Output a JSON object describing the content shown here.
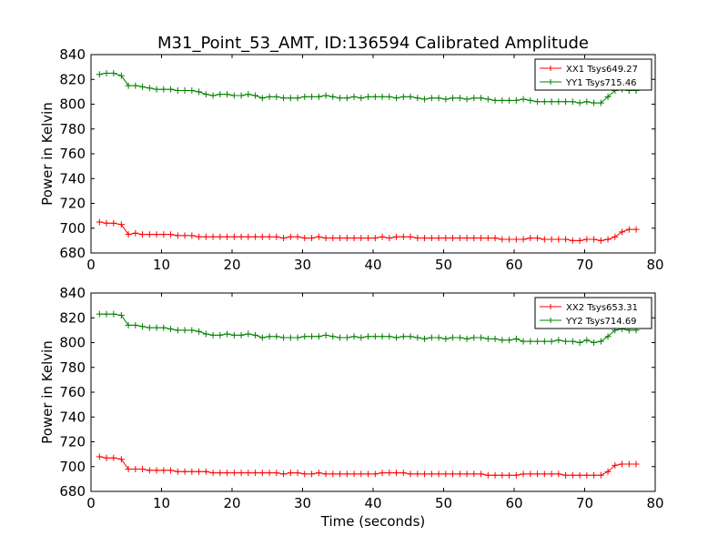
{
  "figure": {
    "title": "M31_Point_53_AMT, ID:136594 Calibrated Amplitude",
    "xlabel": "Time (seconds)"
  },
  "colors": {
    "red": "#ff0000",
    "green": "#008000"
  },
  "chart_data": [
    {
      "type": "line",
      "xlabel": "",
      "ylabel": "Power in Kelvin",
      "xlim": [
        0,
        80
      ],
      "ylim": [
        680,
        840
      ],
      "xticks": [
        "0",
        "10",
        "20",
        "30",
        "40",
        "50",
        "60",
        "70",
        "80"
      ],
      "yticks": [
        "680",
        "700",
        "720",
        "740",
        "760",
        "780",
        "800",
        "820",
        "840"
      ],
      "grid": false,
      "legend_placement": "top-right",
      "series": [
        {
          "name": "XX1 Tsys649.27",
          "color": "#ff0000",
          "x": [
            1.2,
            2.2,
            3.2,
            4.3,
            5.3,
            6.3,
            7.3,
            8.3,
            9.3,
            10.3,
            11.3,
            12.3,
            13.3,
            14.3,
            15.3,
            16.3,
            17.3,
            18.3,
            19.3,
            20.3,
            21.3,
            22.3,
            23.3,
            24.3,
            25.3,
            26.3,
            27.3,
            28.3,
            29.3,
            30.3,
            31.3,
            32.3,
            33.3,
            34.3,
            35.3,
            36.3,
            37.3,
            38.3,
            39.3,
            40.3,
            41.3,
            42.3,
            43.3,
            44.3,
            45.3,
            46.3,
            47.3,
            48.3,
            49.3,
            50.3,
            51.3,
            52.3,
            53.3,
            54.3,
            55.3,
            56.3,
            57.3,
            58.3,
            59.3,
            60.3,
            61.3,
            62.3,
            63.3,
            64.3,
            65.3,
            66.3,
            67.3,
            68.3,
            69.3,
            70.3,
            71.3,
            72.3,
            73.3,
            74.3,
            75.3,
            76.3,
            77.3
          ],
          "y": [
            705,
            704,
            704,
            703,
            695,
            696,
            695,
            695,
            695,
            695,
            695,
            694,
            694,
            694,
            693,
            693,
            693,
            693,
            693,
            693,
            693,
            693,
            693,
            693,
            693,
            693,
            692,
            693,
            693,
            692,
            692,
            693,
            692,
            692,
            692,
            692,
            692,
            692,
            692,
            692,
            693,
            692,
            693,
            693,
            693,
            692,
            692,
            692,
            692,
            692,
            692,
            692,
            692,
            692,
            692,
            692,
            692,
            691,
            691,
            691,
            691,
            692,
            692,
            691,
            691,
            691,
            691,
            690,
            690,
            691,
            691,
            690,
            691,
            693,
            697,
            699,
            699
          ]
        },
        {
          "name": "YY1 Tsys715.46",
          "color": "#008000",
          "x": [
            1.2,
            2.2,
            3.2,
            4.3,
            5.3,
            6.3,
            7.3,
            8.3,
            9.3,
            10.3,
            11.3,
            12.3,
            13.3,
            14.3,
            15.3,
            16.3,
            17.3,
            18.3,
            19.3,
            20.3,
            21.3,
            22.3,
            23.3,
            24.3,
            25.3,
            26.3,
            27.3,
            28.3,
            29.3,
            30.3,
            31.3,
            32.3,
            33.3,
            34.3,
            35.3,
            36.3,
            37.3,
            38.3,
            39.3,
            40.3,
            41.3,
            42.3,
            43.3,
            44.3,
            45.3,
            46.3,
            47.3,
            48.3,
            49.3,
            50.3,
            51.3,
            52.3,
            53.3,
            54.3,
            55.3,
            56.3,
            57.3,
            58.3,
            59.3,
            60.3,
            61.3,
            62.3,
            63.3,
            64.3,
            65.3,
            66.3,
            67.3,
            68.3,
            69.3,
            70.3,
            71.3,
            72.3,
            73.3,
            74.3,
            75.3,
            76.3,
            77.3
          ],
          "y": [
            824,
            825,
            825,
            823,
            815,
            815,
            814,
            813,
            812,
            812,
            812,
            811,
            811,
            811,
            810,
            808,
            807,
            808,
            808,
            807,
            807,
            808,
            807,
            805,
            806,
            806,
            805,
            805,
            805,
            806,
            806,
            806,
            807,
            806,
            805,
            805,
            806,
            805,
            806,
            806,
            806,
            806,
            805,
            806,
            806,
            805,
            804,
            805,
            805,
            804,
            805,
            805,
            804,
            805,
            805,
            804,
            803,
            803,
            803,
            803,
            804,
            803,
            802,
            802,
            802,
            802,
            802,
            802,
            801,
            802,
            801,
            801,
            806,
            811,
            812,
            811,
            811
          ]
        }
      ]
    },
    {
      "type": "line",
      "xlabel": "Time (seconds)",
      "ylabel": "Power in Kelvin",
      "xlim": [
        0,
        80
      ],
      "ylim": [
        680,
        840
      ],
      "xticks": [
        "0",
        "10",
        "20",
        "30",
        "40",
        "50",
        "60",
        "70",
        "80"
      ],
      "yticks": [
        "680",
        "700",
        "720",
        "740",
        "760",
        "780",
        "800",
        "820",
        "840"
      ],
      "grid": false,
      "legend_placement": "top-right",
      "series": [
        {
          "name": "XX2 Tsys653.31",
          "color": "#ff0000",
          "x": [
            1.2,
            2.2,
            3.2,
            4.3,
            5.3,
            6.3,
            7.3,
            8.3,
            9.3,
            10.3,
            11.3,
            12.3,
            13.3,
            14.3,
            15.3,
            16.3,
            17.3,
            18.3,
            19.3,
            20.3,
            21.3,
            22.3,
            23.3,
            24.3,
            25.3,
            26.3,
            27.3,
            28.3,
            29.3,
            30.3,
            31.3,
            32.3,
            33.3,
            34.3,
            35.3,
            36.3,
            37.3,
            38.3,
            39.3,
            40.3,
            41.3,
            42.3,
            43.3,
            44.3,
            45.3,
            46.3,
            47.3,
            48.3,
            49.3,
            50.3,
            51.3,
            52.3,
            53.3,
            54.3,
            55.3,
            56.3,
            57.3,
            58.3,
            59.3,
            60.3,
            61.3,
            62.3,
            63.3,
            64.3,
            65.3,
            66.3,
            67.3,
            68.3,
            69.3,
            70.3,
            71.3,
            72.3,
            73.3,
            74.3,
            75.3,
            76.3,
            77.3
          ],
          "y": [
            708,
            707,
            707,
            706,
            698,
            698,
            698,
            697,
            697,
            697,
            697,
            696,
            696,
            696,
            696,
            696,
            695,
            695,
            695,
            695,
            695,
            695,
            695,
            695,
            695,
            695,
            694,
            695,
            695,
            694,
            694,
            695,
            694,
            694,
            694,
            694,
            694,
            694,
            694,
            694,
            695,
            695,
            695,
            695,
            694,
            694,
            694,
            694,
            694,
            694,
            694,
            694,
            694,
            694,
            694,
            693,
            693,
            693,
            693,
            693,
            694,
            694,
            694,
            694,
            694,
            694,
            693,
            693,
            693,
            693,
            693,
            693,
            696,
            701,
            702,
            702,
            702
          ]
        },
        {
          "name": "YY2 Tsys714.69",
          "color": "#008000",
          "x": [
            1.2,
            2.2,
            3.2,
            4.3,
            5.3,
            6.3,
            7.3,
            8.3,
            9.3,
            10.3,
            11.3,
            12.3,
            13.3,
            14.3,
            15.3,
            16.3,
            17.3,
            18.3,
            19.3,
            20.3,
            21.3,
            22.3,
            23.3,
            24.3,
            25.3,
            26.3,
            27.3,
            28.3,
            29.3,
            30.3,
            31.3,
            32.3,
            33.3,
            34.3,
            35.3,
            36.3,
            37.3,
            38.3,
            39.3,
            40.3,
            41.3,
            42.3,
            43.3,
            44.3,
            45.3,
            46.3,
            47.3,
            48.3,
            49.3,
            50.3,
            51.3,
            52.3,
            53.3,
            54.3,
            55.3,
            56.3,
            57.3,
            58.3,
            59.3,
            60.3,
            61.3,
            62.3,
            63.3,
            64.3,
            65.3,
            66.3,
            67.3,
            68.3,
            69.3,
            70.3,
            71.3,
            72.3,
            73.3,
            74.3,
            75.3,
            76.3,
            77.3
          ],
          "y": [
            823,
            823,
            823,
            822,
            814,
            814,
            813,
            812,
            812,
            812,
            811,
            810,
            810,
            810,
            809,
            807,
            806,
            806,
            807,
            806,
            806,
            807,
            806,
            804,
            805,
            805,
            804,
            804,
            804,
            805,
            805,
            805,
            806,
            805,
            804,
            804,
            805,
            804,
            805,
            805,
            805,
            805,
            804,
            805,
            805,
            804,
            803,
            804,
            804,
            803,
            804,
            804,
            803,
            804,
            804,
            803,
            803,
            802,
            802,
            803,
            801,
            801,
            801,
            801,
            801,
            802,
            801,
            801,
            800,
            802,
            800,
            801,
            805,
            810,
            811,
            810,
            810
          ]
        }
      ]
    }
  ]
}
